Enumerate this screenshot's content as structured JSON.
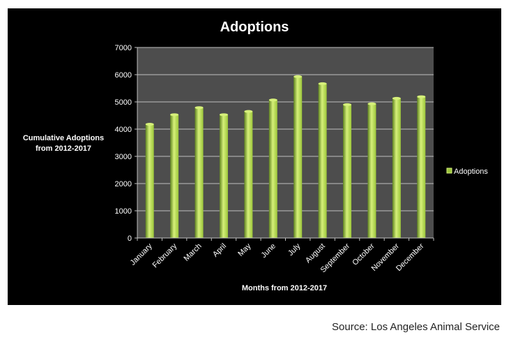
{
  "chart_data": {
    "type": "bar",
    "title": "Adoptions",
    "xlabel": "Months from 2012-2017",
    "ylabel_lines": [
      "Cumulative Adoptions",
      "from 2012-2017"
    ],
    "categories": [
      "January",
      "February",
      "March",
      "April",
      "May",
      "June",
      "July",
      "August",
      "September",
      "October",
      "November",
      "December"
    ],
    "series": [
      {
        "name": "Adoptions",
        "values": [
          4180,
          4530,
          4790,
          4530,
          4650,
          5070,
          5930,
          5670,
          4900,
          4930,
          5130,
          5190
        ]
      }
    ],
    "ylim": [
      0,
      7000
    ],
    "yticks": [
      0,
      1000,
      2000,
      3000,
      4000,
      5000,
      6000,
      7000
    ],
    "grid": true,
    "legend_position": "right",
    "colors": {
      "panel_background": "#000000",
      "plot_background": "#4d4d4d",
      "gridline": "#bfbfbf",
      "bar_light": "#d6f07a",
      "bar_mid": "#9bc53a",
      "bar_dark": "#5f8420"
    }
  },
  "source": "Source: Los Angeles Animal Service"
}
